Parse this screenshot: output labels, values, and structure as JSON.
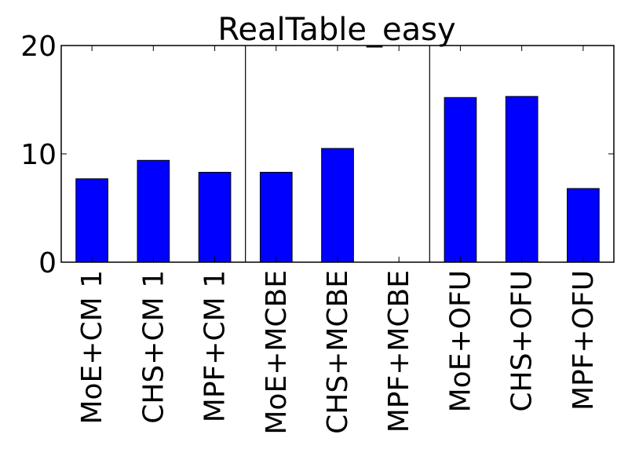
{
  "chart_data": {
    "type": "bar",
    "title": "RealTable_easy",
    "xlabel": "",
    "ylabel": "",
    "categories": [
      "MoE+CM 1",
      "CHS+CM 1",
      "MPF+CM 1",
      "MoE+MCBE",
      "CHS+MCBE",
      "MPF+MCBE",
      "MoE+OFU",
      "CHS+OFU",
      "MPF+OFU"
    ],
    "values": [
      7.7,
      9.4,
      8.3,
      8.3,
      10.5,
      0,
      15.2,
      15.3,
      6.8
    ],
    "ylim": [
      0,
      20
    ],
    "yticks": [
      "0",
      "10",
      "20"
    ],
    "group_separators_after_index": [
      2,
      5
    ],
    "bar_color": "#0000ff",
    "grid": false,
    "legend": "none"
  }
}
